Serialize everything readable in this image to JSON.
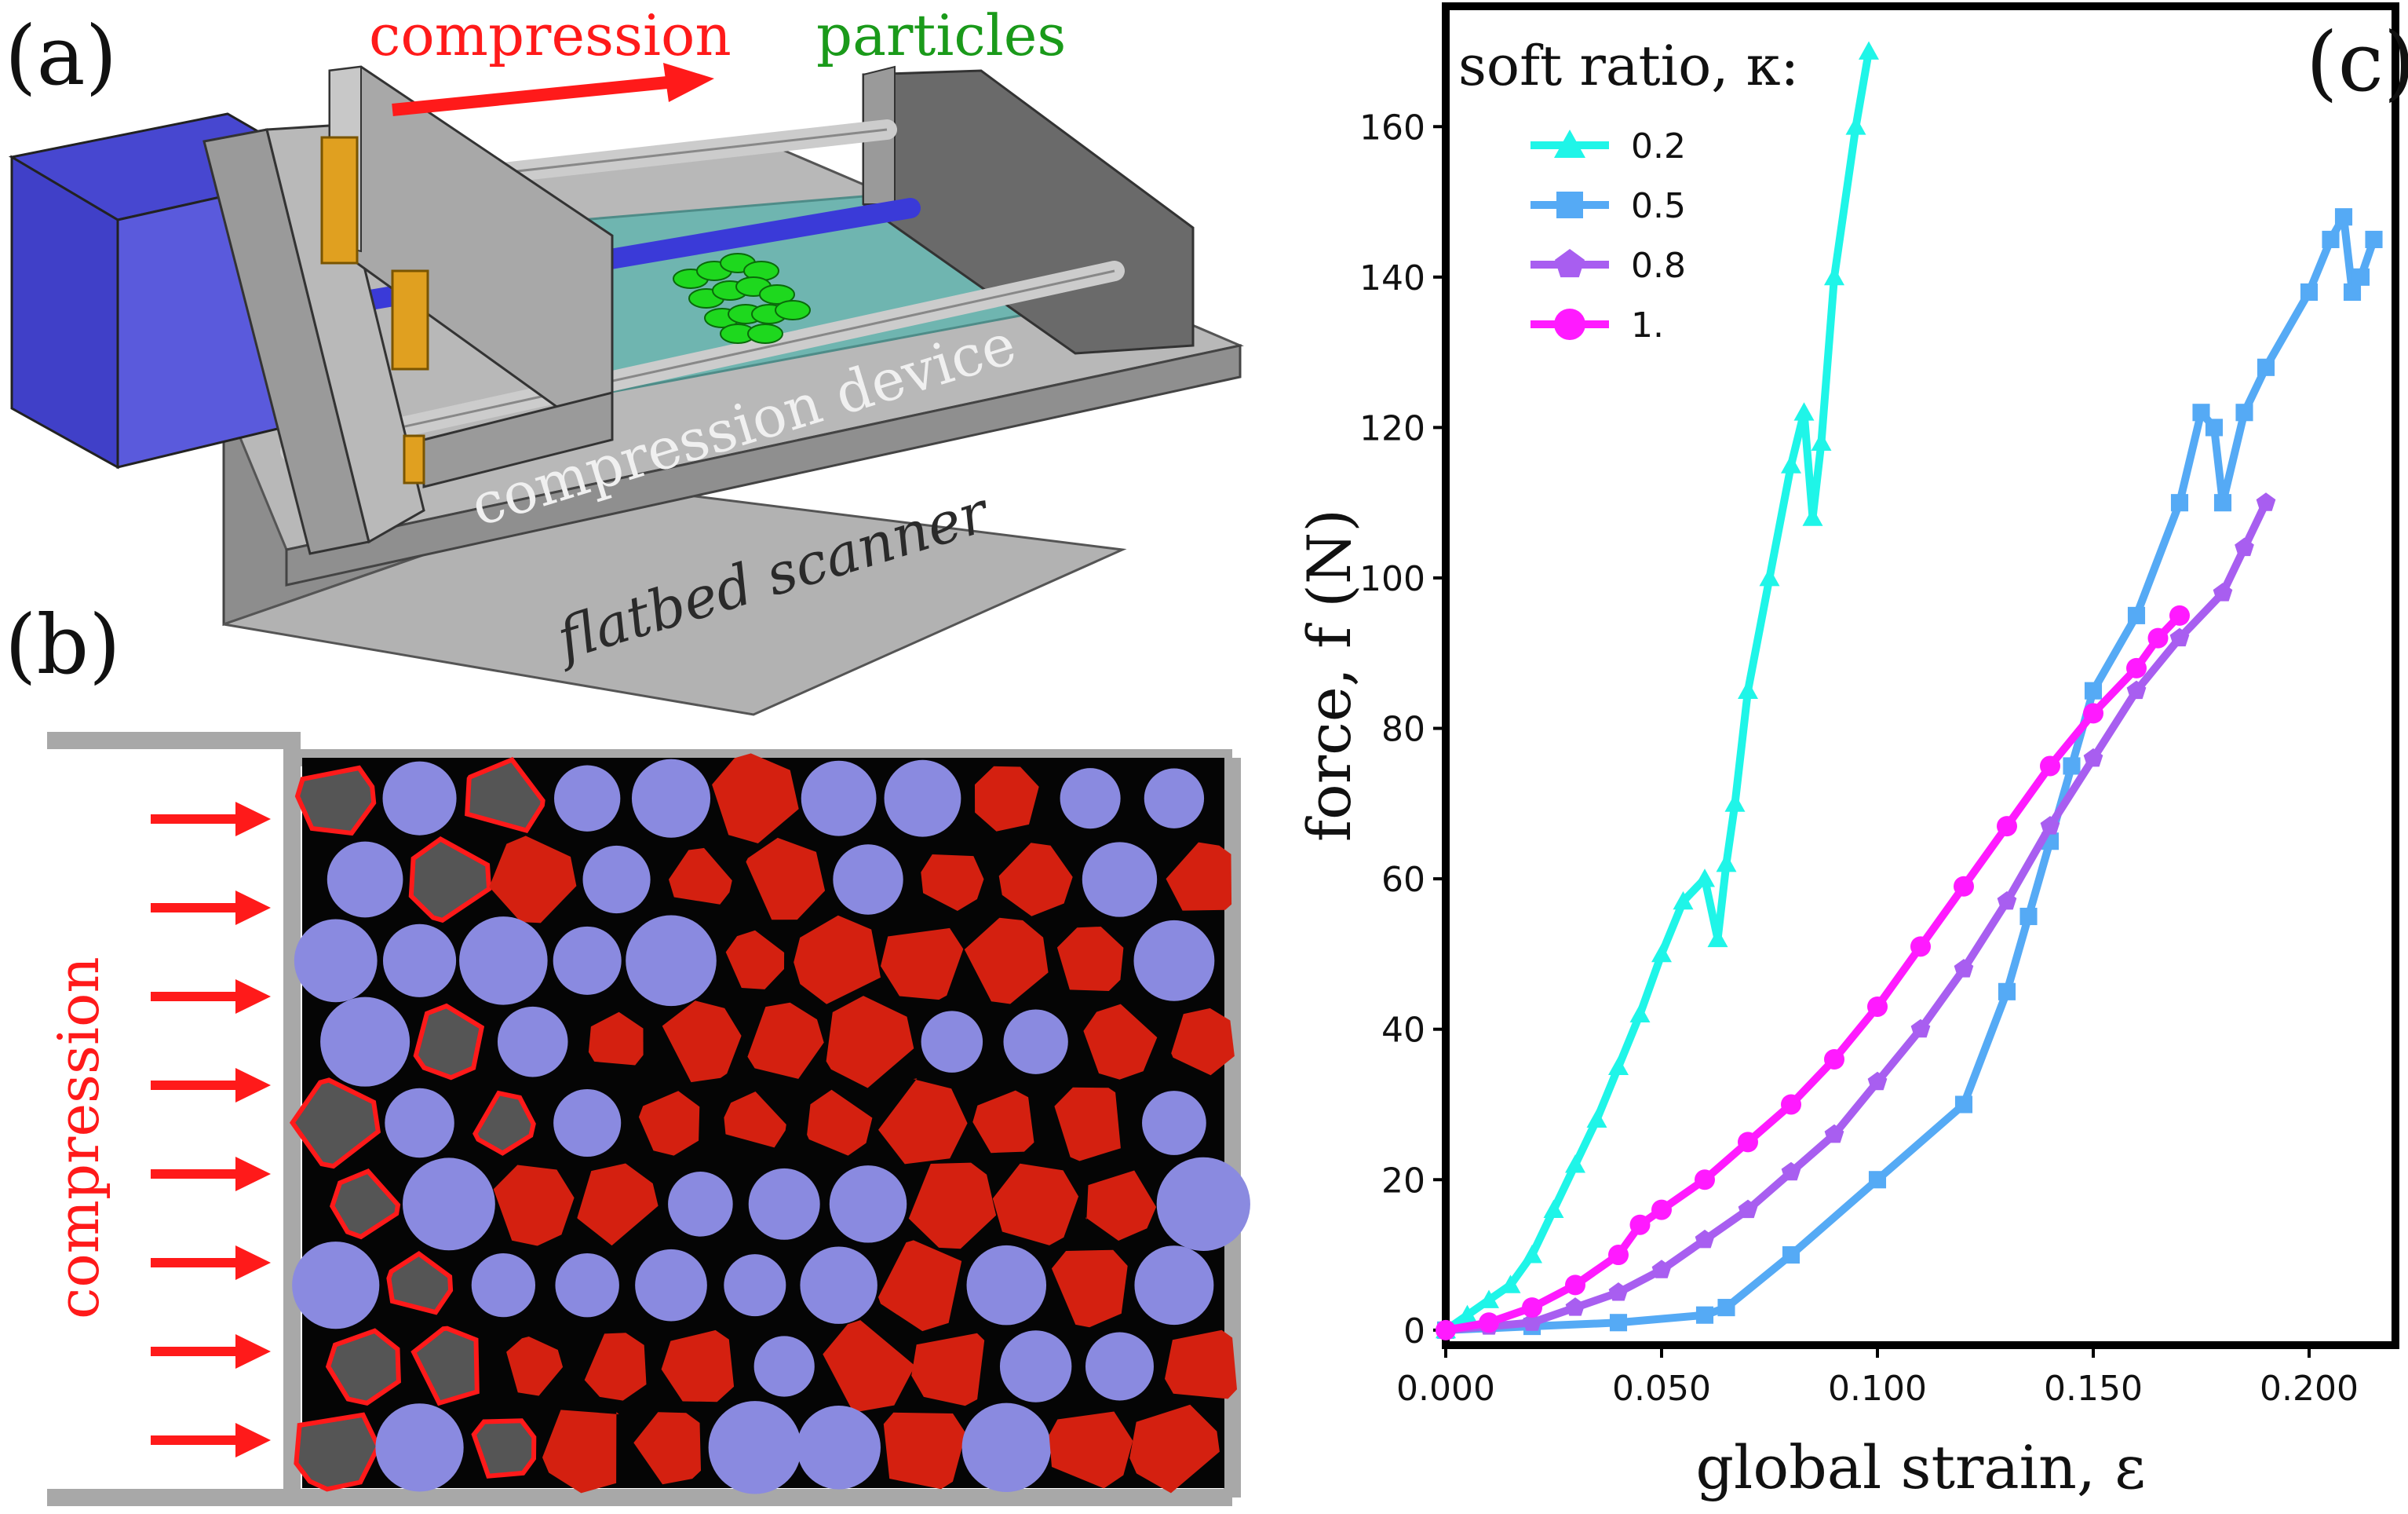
{
  "panels": {
    "a": {
      "label": "(a)",
      "compression_label": "compression",
      "particles_label": "particles",
      "device_label": "compression device",
      "scanner_label": "flatbed scanner"
    },
    "b": {
      "label": "(b)",
      "compression_label": "compression"
    },
    "c": {
      "label": "(c)"
    }
  },
  "colors": {
    "compression_red": "#ff1a1a",
    "particles_green": "#1a9a1a",
    "motor_blue": "#4a4ad8",
    "frame_gray": "#9a9a9a",
    "bracket_orange": "#e0a020",
    "bed_teal": "#6fb5b0",
    "soft_particle": "#8a8ae0",
    "hard_particle_red": "#d42010"
  },
  "chart_data": {
    "type": "line",
    "xlabel": "global strain, ε",
    "ylabel": "force, f (N)",
    "xlim": [
      0,
      0.22
    ],
    "ylim": [
      -2,
      176
    ],
    "x_ticks": [
      0.0,
      0.05,
      0.1,
      0.15,
      0.2
    ],
    "x_tick_labels": [
      "0.000",
      "0.050",
      "0.100",
      "0.150",
      "0.200"
    ],
    "y_ticks": [
      0,
      20,
      40,
      60,
      80,
      100,
      120,
      140,
      160
    ],
    "y_tick_labels": [
      "0",
      "20",
      "40",
      "60",
      "80",
      "100",
      "120",
      "140",
      "160"
    ],
    "legend_title": "soft ratio, κ:",
    "legend_position": "top-left",
    "grid": false,
    "series": [
      {
        "name": "0.2",
        "color": "#1ff5e8",
        "marker": "triangle",
        "x": [
          0,
          0.005,
          0.01,
          0.015,
          0.02,
          0.025,
          0.03,
          0.035,
          0.04,
          0.045,
          0.05,
          0.055,
          0.06,
          0.063,
          0.065,
          0.067,
          0.07,
          0.075,
          0.08,
          0.083,
          0.085,
          0.087,
          0.09,
          0.095,
          0.098
        ],
        "y": [
          0,
          2,
          4,
          6,
          10,
          16,
          22,
          28,
          35,
          42,
          50,
          57,
          60,
          52,
          62,
          70,
          85,
          100,
          115,
          122,
          108,
          118,
          140,
          160,
          170
        ]
      },
      {
        "name": "0.5",
        "color": "#55aaf5",
        "marker": "square",
        "x": [
          0,
          0.02,
          0.04,
          0.06,
          0.065,
          0.08,
          0.1,
          0.12,
          0.13,
          0.135,
          0.14,
          0.145,
          0.15,
          0.16,
          0.17,
          0.175,
          0.178,
          0.18,
          0.185,
          0.19,
          0.2,
          0.205,
          0.208,
          0.21,
          0.212,
          0.215
        ],
        "y": [
          0,
          0.5,
          1,
          2,
          3,
          10,
          20,
          30,
          45,
          55,
          65,
          75,
          85,
          95,
          110,
          122,
          120,
          110,
          122,
          128,
          138,
          145,
          148,
          138,
          140,
          145
        ]
      },
      {
        "name": "0.8",
        "color": "#a85ef0",
        "marker": "pentagon",
        "x": [
          0,
          0.01,
          0.02,
          0.03,
          0.04,
          0.05,
          0.06,
          0.07,
          0.08,
          0.09,
          0.1,
          0.11,
          0.12,
          0.13,
          0.14,
          0.15,
          0.16,
          0.17,
          0.18,
          0.185,
          0.19
        ],
        "y": [
          0,
          0.5,
          1,
          3,
          5,
          8,
          12,
          16,
          21,
          26,
          33,
          40,
          48,
          57,
          67,
          76,
          85,
          92,
          98,
          104,
          110
        ]
      },
      {
        "name": "1.",
        "color": "#ff1aff",
        "marker": "circle",
        "x": [
          0,
          0.01,
          0.02,
          0.03,
          0.04,
          0.045,
          0.05,
          0.06,
          0.07,
          0.08,
          0.09,
          0.1,
          0.11,
          0.12,
          0.13,
          0.14,
          0.15,
          0.16,
          0.165,
          0.17
        ],
        "y": [
          0,
          1,
          3,
          6,
          10,
          14,
          16,
          20,
          25,
          30,
          36,
          43,
          51,
          59,
          67,
          75,
          82,
          88,
          92,
          95
        ]
      }
    ]
  }
}
